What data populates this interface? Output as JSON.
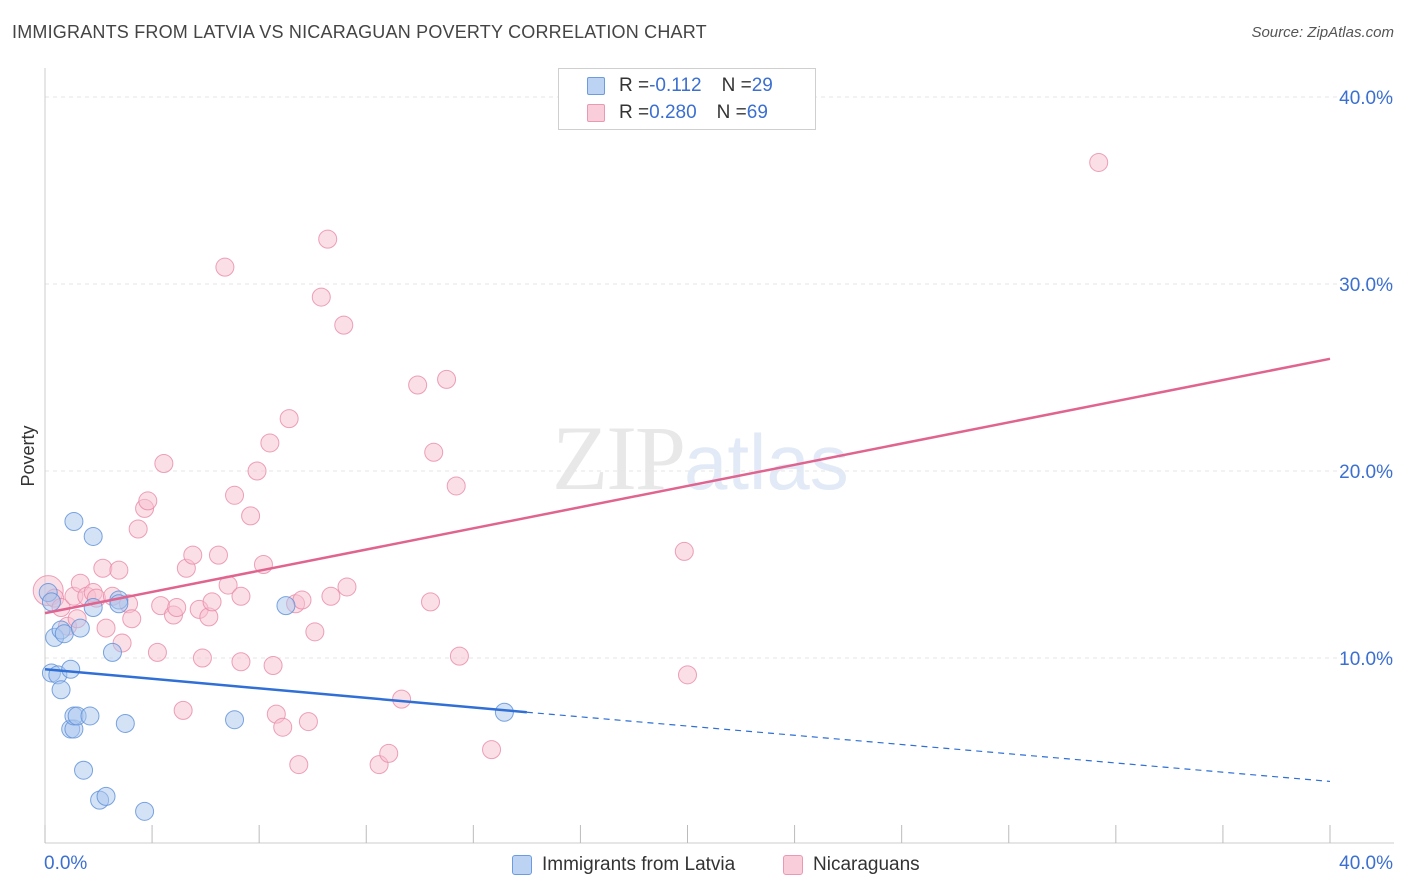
{
  "header": {
    "title": "IMMIGRANTS FROM LATVIA VS NICARAGUAN POVERTY CORRELATION CHART",
    "source": "Source: ZipAtlas.com"
  },
  "legend": {
    "series1": {
      "r_label": "R = ",
      "r_value": "-0.112",
      "n_label": "N = ",
      "n_value": "29"
    },
    "series2": {
      "r_label": "R = ",
      "r_value": "0.280",
      "n_label": "N = ",
      "n_value": "69"
    }
  },
  "watermark": {
    "zip": "ZIP",
    "atlas": "atlas"
  },
  "colors": {
    "blue_fill": "#a9c6ee",
    "blue_stroke": "#5b8fd8",
    "blue_line": "#2f6fd6",
    "pink_fill": "#f7bfd0",
    "pink_stroke": "#e88aa8",
    "pink_line": "#e0648f",
    "axis_text": "#3b6fd0",
    "grid": "#e6e6e6"
  },
  "chart_data": {
    "type": "scatter",
    "title": "IMMIGRANTS FROM LATVIA VS NICARAGUAN POVERTY CORRELATION CHART",
    "xlabel": "",
    "ylabel": "Poverty",
    "xlim": [
      0,
      40
    ],
    "ylim": [
      0,
      40
    ],
    "x_tick_labels": [
      "0.0%",
      "40.0%"
    ],
    "y_ticks": [
      10,
      20,
      30,
      40
    ],
    "y_tick_labels": [
      "10.0%",
      "20.0%",
      "30.0%",
      "40.0%"
    ],
    "grid": true,
    "legend_position": "top-center",
    "series": [
      {
        "name": "Immigrants from Latvia",
        "color": "blue",
        "r": -0.112,
        "n": 29,
        "trend": {
          "x0": 0,
          "y0": 9.4,
          "x1": 15.0,
          "y1": 7.1,
          "dash_to_x": 40,
          "dash_to_y": 3.4
        },
        "points": [
          [
            0.1,
            13.5
          ],
          [
            0.2,
            9.2
          ],
          [
            0.3,
            11.1
          ],
          [
            0.4,
            9.1
          ],
          [
            0.5,
            8.3
          ],
          [
            0.5,
            11.5
          ],
          [
            0.6,
            11.3
          ],
          [
            0.8,
            6.2
          ],
          [
            0.8,
            9.4
          ],
          [
            0.9,
            6.2
          ],
          [
            0.9,
            6.9
          ],
          [
            0.9,
            17.3
          ],
          [
            1.0,
            6.9
          ],
          [
            1.1,
            11.6
          ],
          [
            1.2,
            4.0
          ],
          [
            1.4,
            6.9
          ],
          [
            1.5,
            12.7
          ],
          [
            1.5,
            16.5
          ],
          [
            1.7,
            2.4
          ],
          [
            1.9,
            2.6
          ],
          [
            2.1,
            10.3
          ],
          [
            2.3,
            13.1
          ],
          [
            2.3,
            12.9
          ],
          [
            2.5,
            6.5
          ],
          [
            3.1,
            1.8
          ],
          [
            5.9,
            6.7
          ],
          [
            7.5,
            12.8
          ],
          [
            14.3,
            7.1
          ],
          [
            0.2,
            13.0
          ]
        ]
      },
      {
        "name": "Nicaraguans",
        "color": "pink",
        "r": 0.28,
        "n": 69,
        "trend": {
          "x0": 0,
          "y0": 12.4,
          "x1": 40,
          "y1": 26.0
        },
        "points": [
          [
            0.1,
            13.6
          ],
          [
            0.3,
            13.2
          ],
          [
            0.5,
            12.7
          ],
          [
            0.7,
            11.7
          ],
          [
            0.9,
            13.3
          ],
          [
            1.0,
            12.1
          ],
          [
            1.1,
            14.0
          ],
          [
            1.3,
            13.3
          ],
          [
            1.5,
            13.5
          ],
          [
            1.6,
            13.2
          ],
          [
            1.8,
            14.8
          ],
          [
            1.9,
            11.6
          ],
          [
            2.1,
            13.3
          ],
          [
            2.3,
            14.7
          ],
          [
            2.4,
            10.8
          ],
          [
            2.6,
            12.9
          ],
          [
            2.7,
            12.1
          ],
          [
            2.9,
            16.9
          ],
          [
            3.1,
            18.0
          ],
          [
            3.2,
            18.4
          ],
          [
            3.5,
            10.3
          ],
          [
            3.6,
            12.8
          ],
          [
            3.7,
            20.4
          ],
          [
            4.0,
            12.3
          ],
          [
            4.1,
            12.7
          ],
          [
            4.3,
            7.2
          ],
          [
            4.4,
            14.8
          ],
          [
            4.6,
            15.5
          ],
          [
            4.8,
            12.6
          ],
          [
            4.9,
            10.0
          ],
          [
            5.1,
            12.2
          ],
          [
            5.2,
            13.0
          ],
          [
            5.4,
            15.5
          ],
          [
            5.6,
            30.9
          ],
          [
            5.7,
            13.9
          ],
          [
            5.9,
            18.7
          ],
          [
            6.1,
            13.3
          ],
          [
            6.1,
            9.8
          ],
          [
            6.4,
            17.6
          ],
          [
            6.6,
            20.0
          ],
          [
            6.8,
            15.0
          ],
          [
            7.0,
            21.5
          ],
          [
            7.1,
            9.6
          ],
          [
            7.2,
            7.0
          ],
          [
            7.4,
            6.3
          ],
          [
            7.6,
            22.8
          ],
          [
            7.8,
            12.9
          ],
          [
            7.9,
            4.3
          ],
          [
            8.0,
            13.1
          ],
          [
            8.2,
            6.6
          ],
          [
            8.4,
            11.4
          ],
          [
            8.6,
            29.3
          ],
          [
            8.8,
            32.4
          ],
          [
            8.9,
            13.3
          ],
          [
            9.3,
            27.8
          ],
          [
            9.4,
            13.8
          ],
          [
            10.4,
            4.3
          ],
          [
            10.7,
            4.9
          ],
          [
            11.1,
            7.8
          ],
          [
            11.6,
            24.6
          ],
          [
            12.0,
            13.0
          ],
          [
            12.1,
            21.0
          ],
          [
            12.5,
            24.9
          ],
          [
            12.8,
            19.2
          ],
          [
            12.9,
            10.1
          ],
          [
            13.9,
            5.1
          ],
          [
            19.9,
            15.7
          ],
          [
            20.0,
            9.1
          ],
          [
            32.8,
            36.5
          ]
        ]
      }
    ]
  },
  "bottom_legend": {
    "item1": "Immigrants from Latvia",
    "item2": "Nicaraguans"
  }
}
